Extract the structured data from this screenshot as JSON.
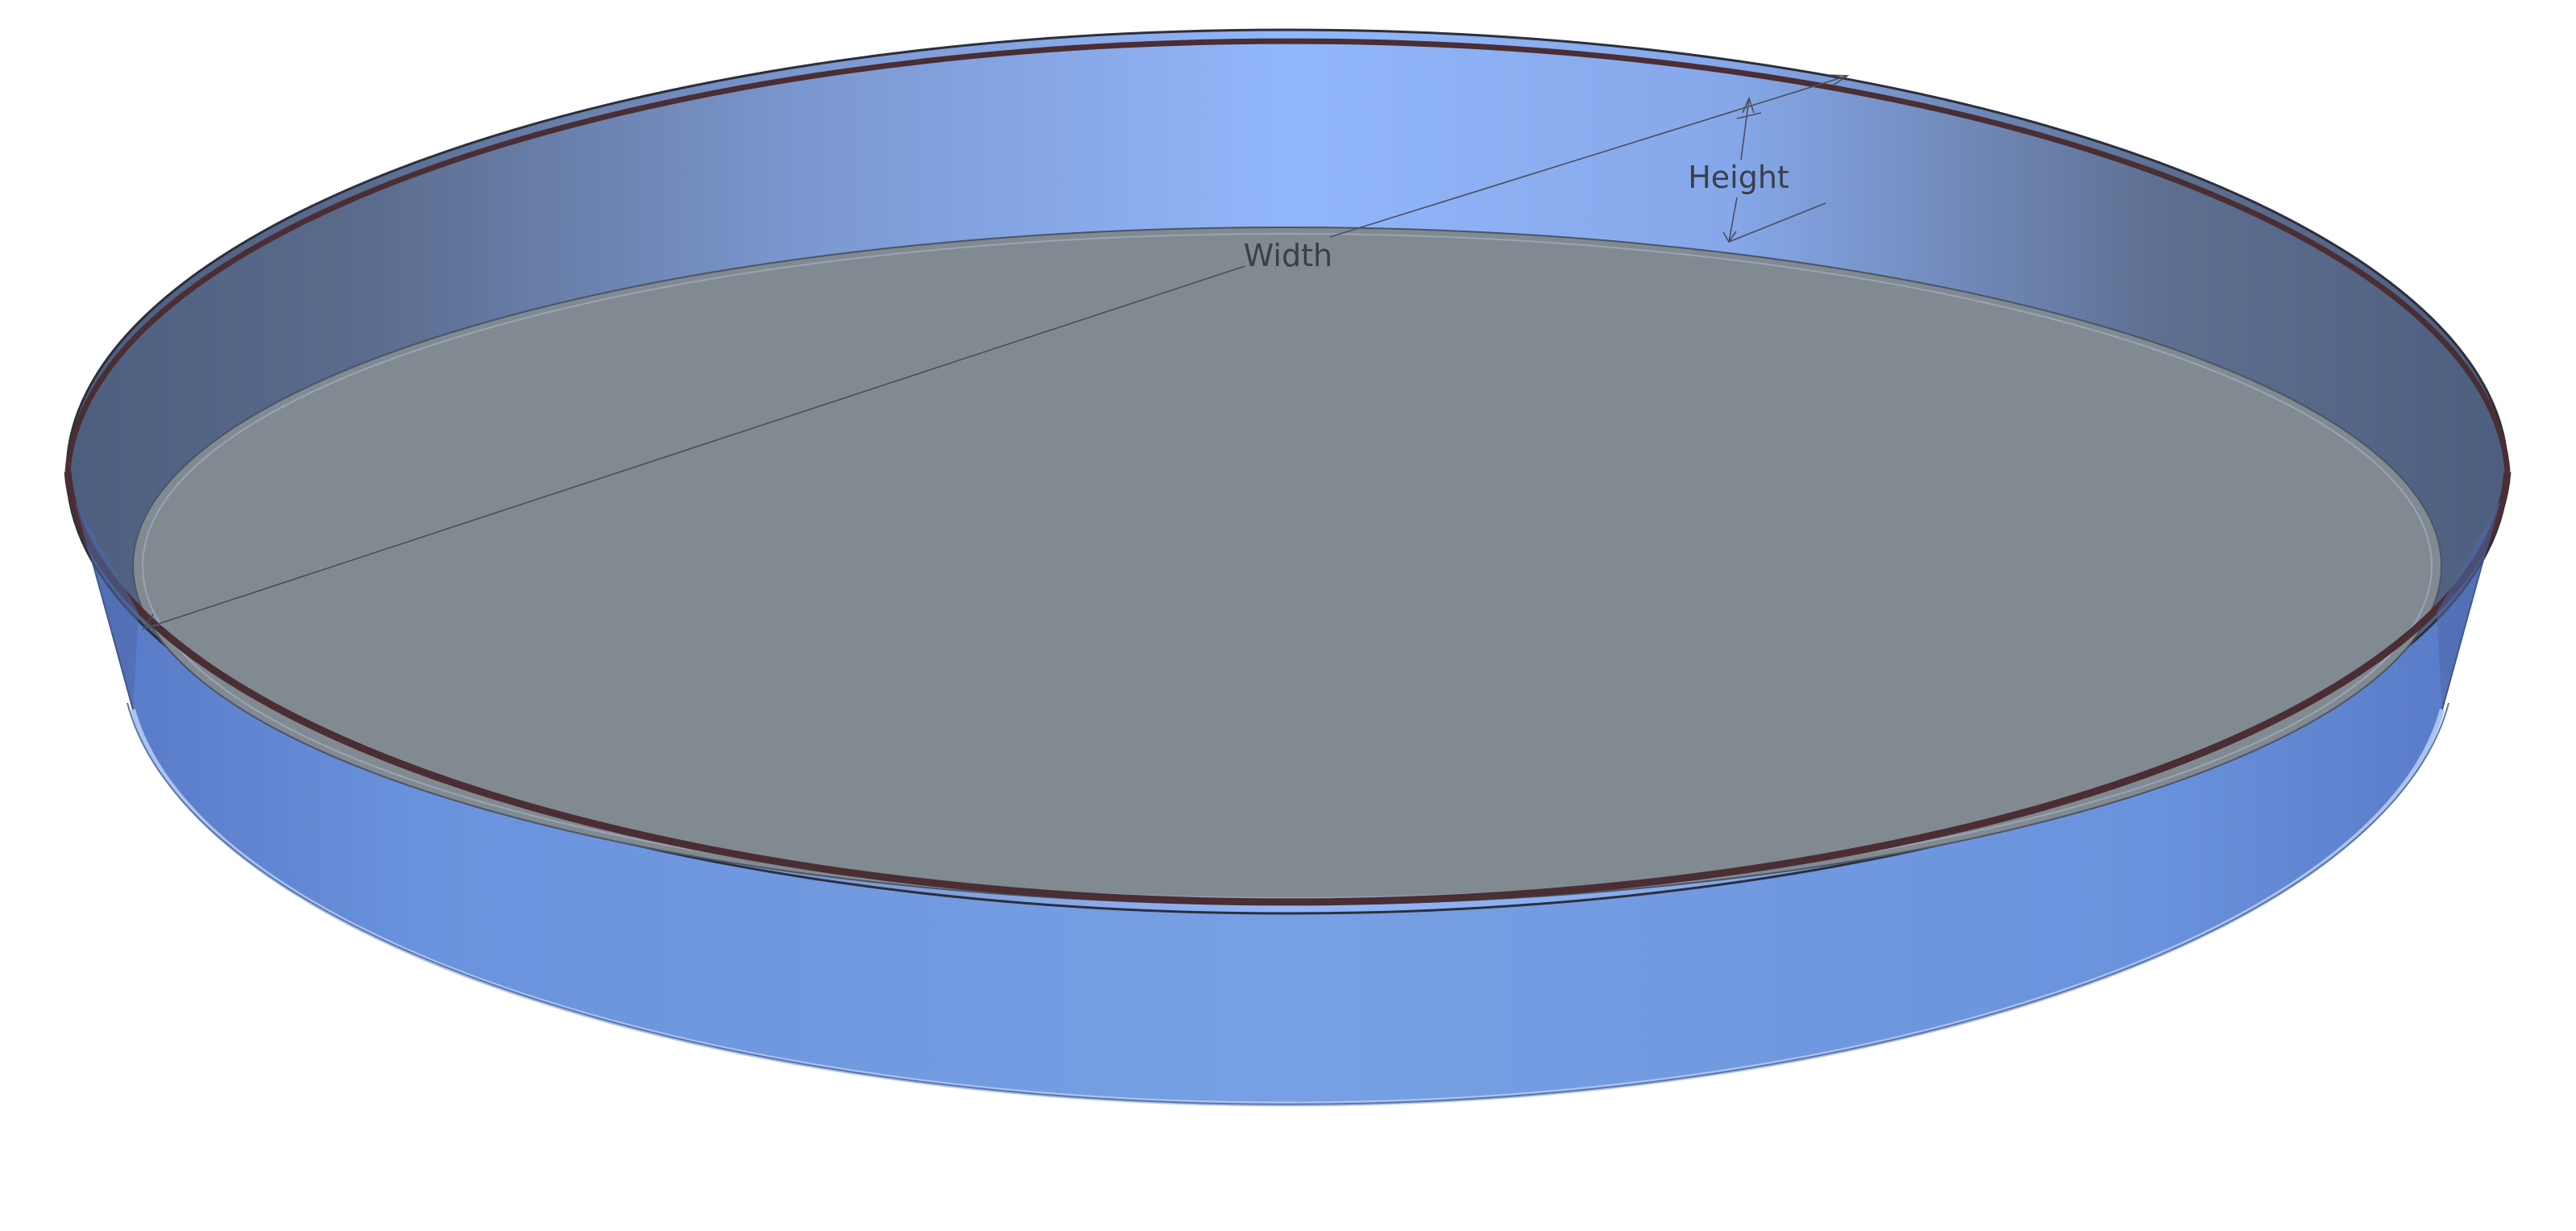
{
  "model": {
    "shape": "cylindrical-tray",
    "colors": {
      "wall": "#6f98df",
      "wall_light": "#92b6fb",
      "wall_dark": "#5b6b88",
      "floor": "#808a90",
      "rim": "#4a2e33",
      "outline": "#3a3f55",
      "background": "#ffffff"
    }
  },
  "dimensions": {
    "width_label": "Width",
    "height_label": "Height"
  }
}
